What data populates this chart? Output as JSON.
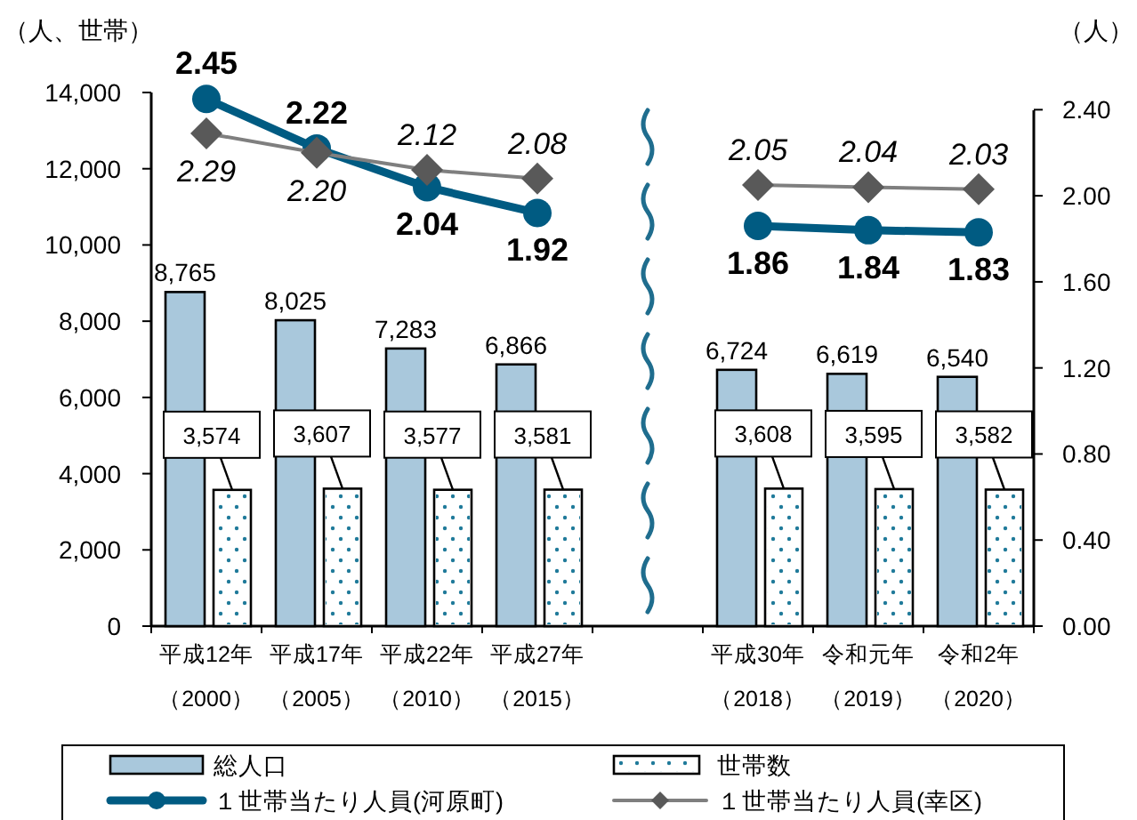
{
  "chart_data": {
    "type": "bar",
    "ylabel": "（人、世帯）",
    "y2label": "（人）",
    "categories": [
      "平成12年（2000）",
      "平成17年（2005）",
      "平成22年（2010）",
      "平成27年（2015）",
      null,
      "平成30年（2018）",
      "令和元年（2019）",
      "令和2年（2020）"
    ],
    "series": [
      {
        "name": "総人口",
        "color": "#a9c8dc",
        "values": [
          8765,
          8025,
          7283,
          6866,
          null,
          6724,
          6619,
          6540
        ],
        "value_labels": [
          "8,765",
          "8,025",
          "7,283",
          "6,866",
          null,
          "6,724",
          "6,619",
          "6,540"
        ]
      },
      {
        "name": "世帯数",
        "color": "#ffffff",
        "values": [
          3574,
          3607,
          3577,
          3581,
          null,
          3608,
          3595,
          3582
        ],
        "value_labels": [
          "3,574",
          "3,607",
          "3,577",
          "3,581",
          null,
          "3,608",
          "3,595",
          "3,582"
        ]
      },
      {
        "name": "１世帯当たり人員(河原町)",
        "type": "line",
        "axis": "y2",
        "marker": "circle",
        "color": "#005b82",
        "values": [
          2.45,
          2.22,
          2.04,
          1.92,
          null,
          1.86,
          1.84,
          1.83
        ],
        "value_labels": [
          "2.45",
          "2.22",
          "2.04",
          "1.92",
          null,
          "1.86",
          "1.84",
          "1.83"
        ]
      },
      {
        "name": "１世帯当たり人員(幸区)",
        "type": "line",
        "axis": "y2",
        "marker": "diamond",
        "color": "#7f7f7f",
        "values": [
          2.29,
          2.2,
          2.12,
          2.08,
          null,
          2.05,
          2.04,
          2.03
        ],
        "value_labels": [
          "2.29",
          "2.20",
          "2.12",
          "2.08",
          null,
          "2.05",
          "2.04",
          "2.03"
        ]
      }
    ],
    "ylim": [
      0,
      14000
    ],
    "yticks": [
      0,
      {
        "value": 2000,
        "label": "2,000"
      },
      {
        "value": 4000,
        "label": "4,000"
      },
      {
        "value": 6000,
        "label": "6,000"
      },
      {
        "value": 8000,
        "label": "8,000"
      },
      {
        "value": 10000,
        "label": "10,000"
      },
      {
        "value": 12000,
        "label": "12,000"
      },
      {
        "value": 14000,
        "label": "14,000"
      }
    ],
    "y2lim": [
      0,
      2.48
    ],
    "y2ticks": [
      {
        "value": 0,
        "label": "0.00"
      },
      {
        "value": 0.4,
        "label": "0.40"
      },
      {
        "value": 0.8,
        "label": "0.80"
      },
      {
        "value": 1.2,
        "label": "1.20"
      },
      {
        "value": 1.6,
        "label": "1.60"
      },
      {
        "value": 2.0,
        "label": "2.00"
      },
      {
        "value": 2.4,
        "label": "2.40"
      }
    ],
    "legend": "bottom"
  }
}
